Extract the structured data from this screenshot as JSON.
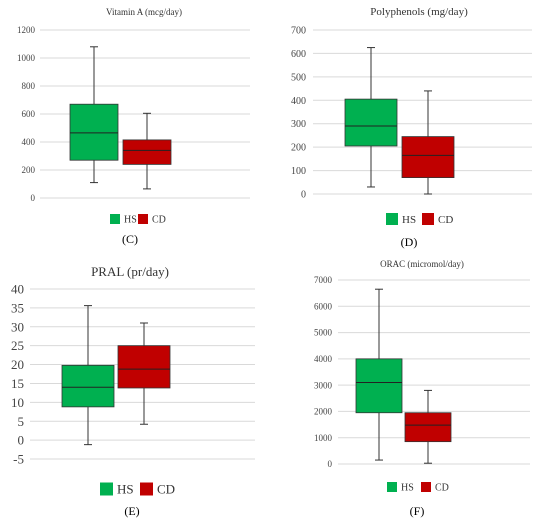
{
  "chart_data": [
    {
      "panel_label": "(C)",
      "type": "box",
      "title": "Vitamin A (mcg/day)",
      "ylim": [
        0,
        1200
      ],
      "yticks": [
        0,
        200,
        400,
        600,
        800,
        1000,
        1200
      ],
      "grid": true,
      "legend": "bottom",
      "series": [
        {
          "name": "HS",
          "color": "#00b050",
          "min": 110,
          "q1": 270,
          "median": 465,
          "q3": 670,
          "max": 1080
        },
        {
          "name": "CD",
          "color": "#c00000",
          "min": 65,
          "q1": 240,
          "median": 340,
          "q3": 415,
          "max": 605
        }
      ]
    },
    {
      "panel_label": "(D)",
      "type": "box",
      "title": "Polyphenols (mg/day)",
      "ylim": [
        0,
        700
      ],
      "yticks": [
        0,
        100,
        200,
        300,
        400,
        500,
        600,
        700
      ],
      "grid": true,
      "legend": "bottom",
      "series": [
        {
          "name": "HS",
          "color": "#00b050",
          "min": 30,
          "q1": 205,
          "median": 290,
          "q3": 405,
          "max": 625
        },
        {
          "name": "CD",
          "color": "#c00000",
          "min": 0,
          "q1": 70,
          "median": 165,
          "q3": 245,
          "max": 440
        }
      ]
    },
    {
      "panel_label": "(E)",
      "type": "box",
      "title": "PRAL (pr/day)",
      "ylim": [
        -5,
        40
      ],
      "yticks": [
        -5,
        0,
        5,
        10,
        15,
        20,
        25,
        30,
        35,
        40
      ],
      "grid": true,
      "legend": "bottom",
      "series": [
        {
          "name": "HS",
          "color": "#00b050",
          "min": -1.2,
          "q1": 8.8,
          "median": 14,
          "q3": 19.8,
          "max": 35.6
        },
        {
          "name": "CD",
          "color": "#c00000",
          "min": 4.2,
          "q1": 13.8,
          "median": 18.8,
          "q3": 25,
          "max": 31
        }
      ]
    },
    {
      "panel_label": "(F)",
      "type": "box",
      "title": "ORAC (micromol/day)",
      "ylim": [
        0,
        7000
      ],
      "yticks": [
        0,
        1000,
        2000,
        3000,
        4000,
        5000,
        6000,
        7000
      ],
      "grid": true,
      "legend": "bottom",
      "series": [
        {
          "name": "HS",
          "color": "#00b050",
          "min": 150,
          "q1": 1950,
          "median": 3100,
          "q3": 4000,
          "max": 6650
        },
        {
          "name": "CD",
          "color": "#c00000",
          "min": 30,
          "q1": 850,
          "median": 1480,
          "q3": 1950,
          "max": 2800
        }
      ]
    }
  ]
}
